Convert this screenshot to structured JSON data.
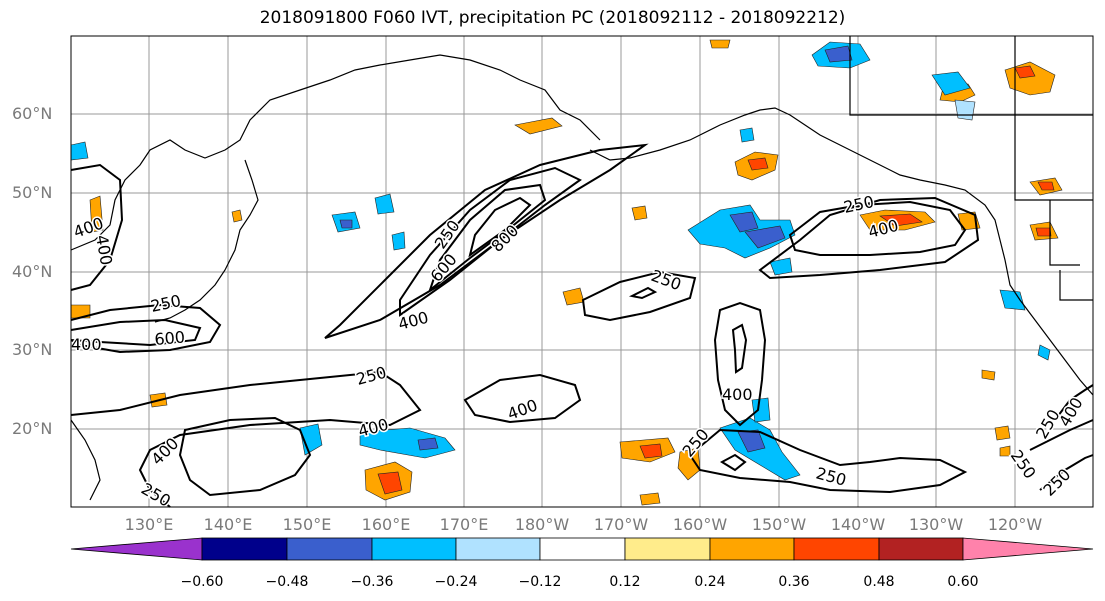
{
  "title": "2018091800 F060 IVT, precipitation PC (2018092112 - 2018092212)",
  "lat_labels": [
    "60°N",
    "50°N",
    "40°N",
    "30°N",
    "20°N"
  ],
  "lon_labels": [
    "130°E",
    "140°E",
    "150°E",
    "160°E",
    "170°E",
    "180°W",
    "170°W",
    "160°W",
    "150°W",
    "140°W",
    "130°W",
    "120°W"
  ],
  "colorbar": {
    "ticks": [
      "−0.60",
      "−0.48",
      "−0.36",
      "−0.24",
      "−0.12",
      "0.12",
      "0.24",
      "0.36",
      "0.48",
      "0.60"
    ],
    "colors": [
      "#9a32cd",
      "#00008b",
      "#3a5fcd",
      "#00bfff",
      "#b0e2ff",
      "#ffffff",
      "#ffec8b",
      "#ffa500",
      "#ff4500",
      "#b22222",
      "#ff82ab"
    ]
  },
  "contour_labels": [
    "250",
    "400",
    "600",
    "800",
    "250",
    "400",
    "400",
    "250",
    "600",
    "250",
    "400",
    "400",
    "400",
    "250",
    "250",
    "400",
    "250",
    "400",
    "250",
    "250",
    "400",
    "250",
    "400",
    "250"
  ]
}
